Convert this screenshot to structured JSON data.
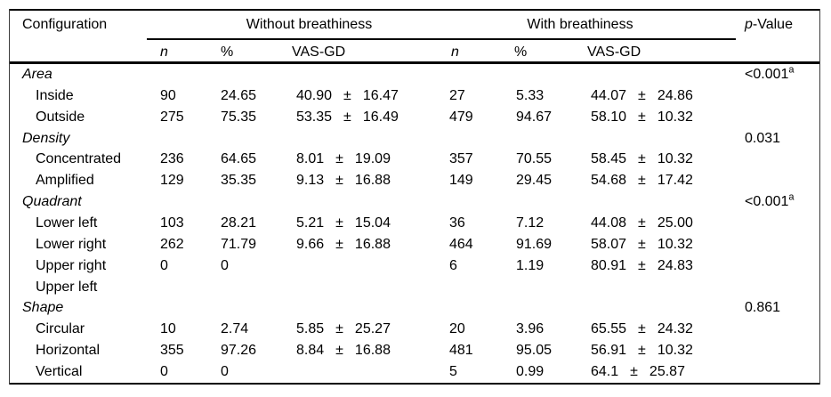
{
  "colors": {
    "background": "#ffffff",
    "text": "#000000",
    "rule": "#000000"
  },
  "header": {
    "configuration": "Configuration",
    "group1": "Without breathiness",
    "group2": "With breathiness",
    "p_italic": "p",
    "p_suffix": "-Value",
    "sub_n": "n",
    "sub_pct": "%",
    "sub_vas": "VAS-GD"
  },
  "rows": [
    {
      "type": "section",
      "label": "Area",
      "p": "<0.001",
      "psup": "a"
    },
    {
      "type": "item",
      "label": "Inside",
      "n1": "90",
      "pct1": "24.65",
      "m1": "40.90",
      "pm1": "±",
      "sd1": "16.47",
      "n2": "27",
      "pct2": "5.33",
      "m2": "44.07",
      "pm2": "±",
      "sd2": "24.86"
    },
    {
      "type": "item",
      "label": "Outside",
      "n1": "275",
      "pct1": "75.35",
      "m1": "53.35",
      "pm1": "±",
      "sd1": "16.49",
      "n2": "479",
      "pct2": "94.67",
      "m2": "58.10",
      "pm2": "±",
      "sd2": "10.32"
    },
    {
      "type": "section",
      "label": "Density",
      "p": "0.031",
      "psup": ""
    },
    {
      "type": "item",
      "label": "Concentrated",
      "n1": "236",
      "pct1": "64.65",
      "m1": "8.01",
      "pm1": "±",
      "sd1": "19.09",
      "n2": "357",
      "pct2": "70.55",
      "m2": "58.45",
      "pm2": "±",
      "sd2": "10.32"
    },
    {
      "type": "item",
      "label": "Amplified",
      "n1": "129",
      "pct1": "35.35",
      "m1": "9.13",
      "pm1": "±",
      "sd1": "16.88",
      "n2": "149",
      "pct2": "29.45",
      "m2": "54.68",
      "pm2": "±",
      "sd2": "17.42"
    },
    {
      "type": "section",
      "label": "Quadrant",
      "p": "<0.001",
      "psup": "a"
    },
    {
      "type": "item",
      "label": "Lower left",
      "n1": "103",
      "pct1": "28.21",
      "m1": "5.21",
      "pm1": "±",
      "sd1": "15.04",
      "n2": "36",
      "pct2": "7.12",
      "m2": "44.08",
      "pm2": "±",
      "sd2": "25.00"
    },
    {
      "type": "item",
      "label": "Lower right",
      "n1": "262",
      "pct1": "71.79",
      "m1": "9.66",
      "pm1": "±",
      "sd1": "16.88",
      "n2": "464",
      "pct2": "91.69",
      "m2": "58.07",
      "pm2": "±",
      "sd2": "10.32"
    },
    {
      "type": "item",
      "label": "Upper right",
      "n1": "0",
      "pct1": "0",
      "n2": "6",
      "pct2": "1.19",
      "m2": "80.91",
      "pm2": "±",
      "sd2": "24.83"
    },
    {
      "type": "item",
      "label": "Upper left"
    },
    {
      "type": "section",
      "label": "Shape",
      "p": "0.861",
      "psup": ""
    },
    {
      "type": "item",
      "label": "Circular",
      "n1": "10",
      "pct1": "2.74",
      "m1": "5.85",
      "pm1": "±",
      "sd1": "25.27",
      "n2": "20",
      "pct2": "3.96",
      "m2": "65.55",
      "pm2": "±",
      "sd2": "24.32"
    },
    {
      "type": "item",
      "label": "Horizontal",
      "n1": "355",
      "pct1": "97.26",
      "m1": "8.84",
      "pm1": "±",
      "sd1": "16.88",
      "n2": "481",
      "pct2": "95.05",
      "m2": "56.91",
      "pm2": "±",
      "sd2": "10.32"
    },
    {
      "type": "item",
      "label": "Vertical",
      "n1": "0",
      "pct1": "0",
      "n2": "5",
      "pct2": "0.99",
      "m2": "64.1",
      "pm2": "±",
      "sd2": "25.87"
    }
  ]
}
